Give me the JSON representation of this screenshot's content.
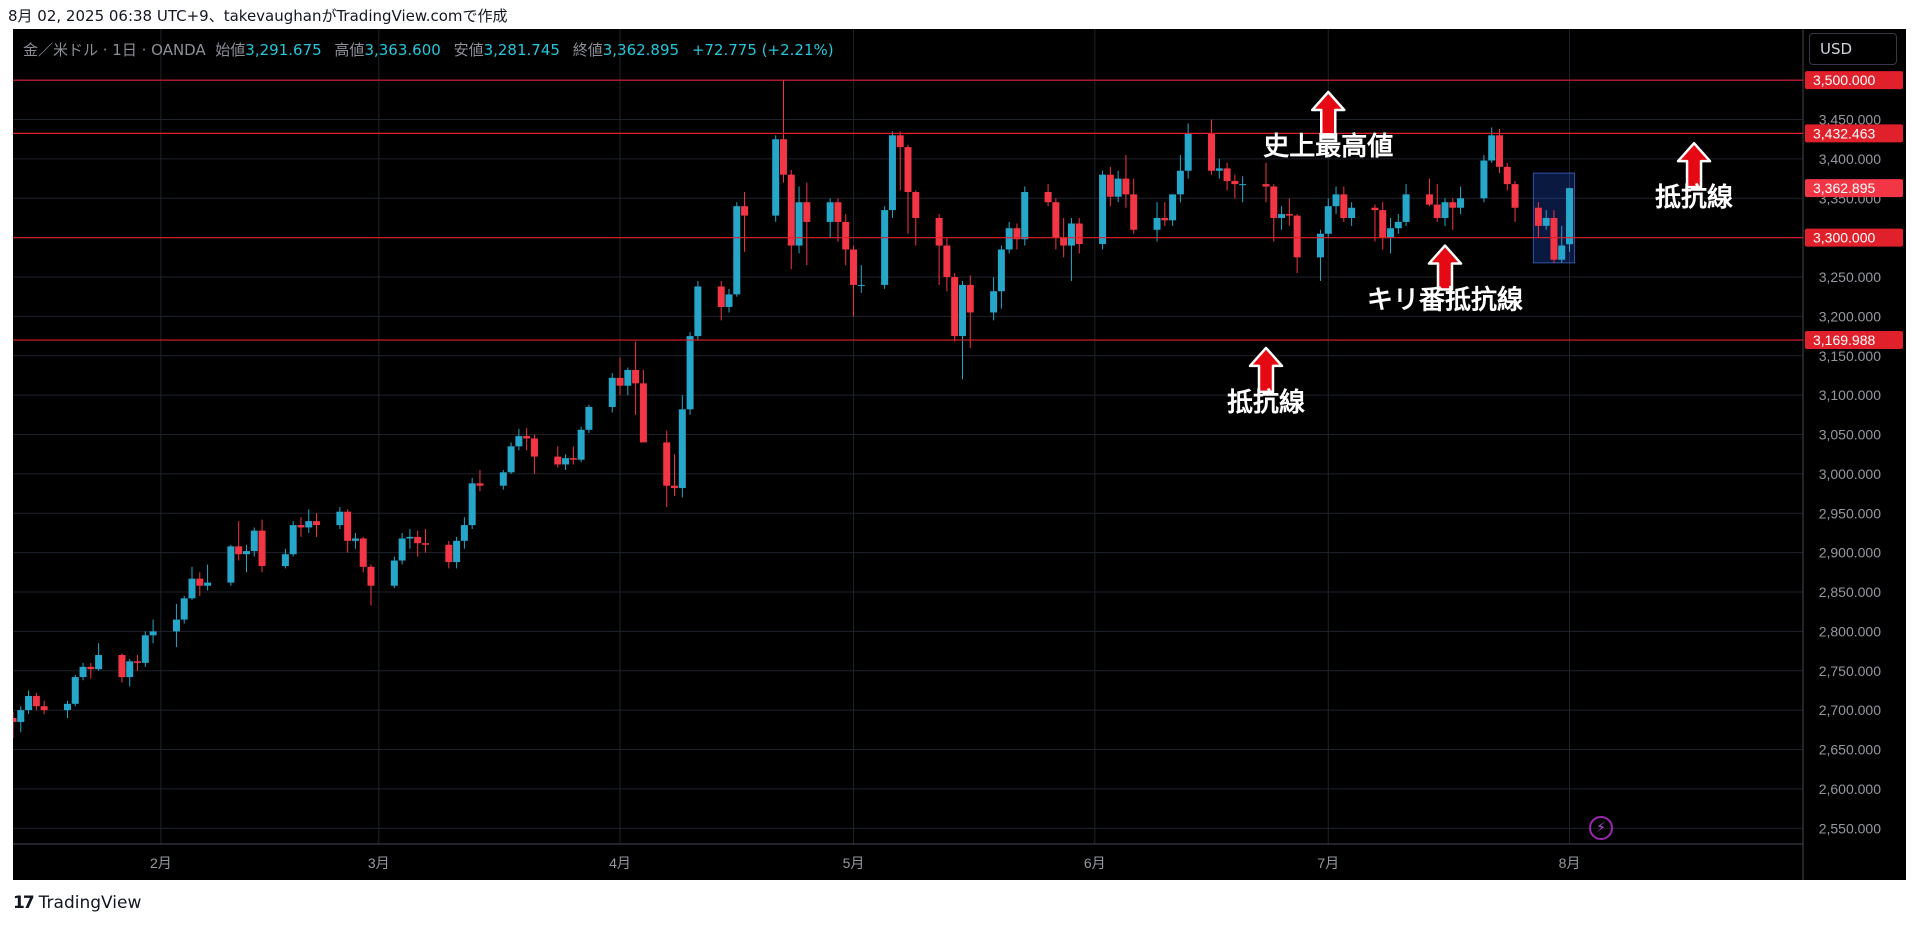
{
  "header": {
    "caption": "8月 02, 2025 06:38 UTC+9、takevaughanがTradingView.comで作成"
  },
  "legend": {
    "symbol": "金／米ドル · 1日 · OANDA",
    "open_label": "始値",
    "open": "3,291.675",
    "high_label": "高値",
    "high": "3,363.600",
    "low_label": "安値",
    "low": "3,281.745",
    "close_label": "終値",
    "close": "3,362.895",
    "change": "+72.775 (+2.21%)"
  },
  "currency": "USD",
  "footer": {
    "brand": "TradingView"
  },
  "colors": {
    "up": "#26a6c8",
    "down": "#f23645",
    "level_line": "#e0202a",
    "background": "#000000",
    "grid": "#1e222d",
    "axis_text": "#9598a1"
  },
  "chart_data": {
    "type": "candlestick",
    "title": "",
    "xlabel": "",
    "ylabel": "",
    "ylim": [
      2530,
      3565
    ],
    "xlim": [
      "2025-01-13",
      "2025-08-31"
    ],
    "y_ticks": [
      2550,
      2600,
      2650,
      2700,
      2750,
      2800,
      2850,
      2900,
      2950,
      3000,
      3050,
      3100,
      3150,
      3200,
      3250,
      3300,
      3350,
      3400,
      3450,
      3500
    ],
    "x_ticks": [
      {
        "label": "2月",
        "date": "2025-02-01"
      },
      {
        "label": "3月",
        "date": "2025-03-01"
      },
      {
        "label": "4月",
        "date": "2025-04-01"
      },
      {
        "label": "5月",
        "date": "2025-05-01"
      },
      {
        "label": "6月",
        "date": "2025-06-01"
      },
      {
        "label": "7月",
        "date": "2025-07-01"
      },
      {
        "label": "8月",
        "date": "2025-08-01"
      }
    ],
    "grid": true,
    "horizontal_levels": [
      {
        "value": 3500.0,
        "label": "3,500.000"
      },
      {
        "value": 3432.463,
        "label": "3,432.463"
      },
      {
        "value": 3300.0,
        "label": "3,300.000"
      },
      {
        "value": 3169.988,
        "label": "3,169.988"
      }
    ],
    "last_price": {
      "value": 3362.895,
      "label": "3,362.895"
    },
    "highlight_box": {
      "from": "2025-07-28",
      "to": "2025-08-01",
      "y_low": 3268,
      "y_high": 3382
    },
    "annotations": [
      {
        "text": "史上最高値",
        "date": "2025-07-01",
        "arrow_at": 3485,
        "text_at": 3405
      },
      {
        "text": "抵抗線",
        "date": "2025-08-17",
        "arrow_at": 3420,
        "text_at": 3340
      },
      {
        "text": "キリ番抵抗線",
        "date": "2025-07-16",
        "arrow_at": 3290,
        "text_at": 3210
      },
      {
        "text": "抵抗線",
        "date": "2025-06-23",
        "arrow_at": 3160,
        "text_at": 3080
      }
    ],
    "candles": [
      {
        "d": "2025-01-13",
        "o": 2690,
        "h": 2698,
        "l": 2665,
        "c": 2685
      },
      {
        "d": "2025-01-14",
        "o": 2685,
        "h": 2705,
        "l": 2672,
        "c": 2700
      },
      {
        "d": "2025-01-15",
        "o": 2700,
        "h": 2725,
        "l": 2695,
        "c": 2718
      },
      {
        "d": "2025-01-16",
        "o": 2718,
        "h": 2722,
        "l": 2700,
        "c": 2705
      },
      {
        "d": "2025-01-17",
        "o": 2705,
        "h": 2712,
        "l": 2695,
        "c": 2700
      },
      {
        "d": "2025-01-20",
        "o": 2700,
        "h": 2712,
        "l": 2690,
        "c": 2708
      },
      {
        "d": "2025-01-21",
        "o": 2708,
        "h": 2745,
        "l": 2705,
        "c": 2742
      },
      {
        "d": "2025-01-22",
        "o": 2742,
        "h": 2760,
        "l": 2738,
        "c": 2755
      },
      {
        "d": "2025-01-23",
        "o": 2755,
        "h": 2760,
        "l": 2740,
        "c": 2752
      },
      {
        "d": "2025-01-24",
        "o": 2752,
        "h": 2785,
        "l": 2750,
        "c": 2770
      },
      {
        "d": "2025-01-27",
        "o": 2770,
        "h": 2772,
        "l": 2735,
        "c": 2742
      },
      {
        "d": "2025-01-28",
        "o": 2742,
        "h": 2765,
        "l": 2730,
        "c": 2762
      },
      {
        "d": "2025-01-29",
        "o": 2762,
        "h": 2770,
        "l": 2750,
        "c": 2760
      },
      {
        "d": "2025-01-30",
        "o": 2760,
        "h": 2800,
        "l": 2755,
        "c": 2795
      },
      {
        "d": "2025-01-31",
        "o": 2795,
        "h": 2815,
        "l": 2785,
        "c": 2800
      },
      {
        "d": "2025-02-03",
        "o": 2800,
        "h": 2835,
        "l": 2780,
        "c": 2815
      },
      {
        "d": "2025-02-04",
        "o": 2815,
        "h": 2845,
        "l": 2810,
        "c": 2842
      },
      {
        "d": "2025-02-05",
        "o": 2842,
        "h": 2882,
        "l": 2840,
        "c": 2867
      },
      {
        "d": "2025-02-06",
        "o": 2867,
        "h": 2875,
        "l": 2845,
        "c": 2858
      },
      {
        "d": "2025-02-07",
        "o": 2858,
        "h": 2885,
        "l": 2852,
        "c": 2862
      },
      {
        "d": "2025-02-10",
        "o": 2862,
        "h": 2910,
        "l": 2858,
        "c": 2908
      },
      {
        "d": "2025-02-11",
        "o": 2908,
        "h": 2940,
        "l": 2890,
        "c": 2898
      },
      {
        "d": "2025-02-12",
        "o": 2898,
        "h": 2910,
        "l": 2875,
        "c": 2902
      },
      {
        "d": "2025-02-13",
        "o": 2902,
        "h": 2932,
        "l": 2895,
        "c": 2928
      },
      {
        "d": "2025-02-14",
        "o": 2928,
        "h": 2942,
        "l": 2875,
        "c": 2883
      },
      {
        "d": "2025-02-17",
        "o": 2883,
        "h": 2905,
        "l": 2880,
        "c": 2898
      },
      {
        "d": "2025-02-18",
        "o": 2898,
        "h": 2940,
        "l": 2895,
        "c": 2935
      },
      {
        "d": "2025-02-19",
        "o": 2935,
        "h": 2945,
        "l": 2920,
        "c": 2932
      },
      {
        "d": "2025-02-20",
        "o": 2932,
        "h": 2955,
        "l": 2925,
        "c": 2940
      },
      {
        "d": "2025-02-21",
        "o": 2940,
        "h": 2950,
        "l": 2920,
        "c": 2935
      },
      {
        "d": "2025-02-24",
        "o": 2935,
        "h": 2958,
        "l": 2930,
        "c": 2952
      },
      {
        "d": "2025-02-25",
        "o": 2952,
        "h": 2955,
        "l": 2900,
        "c": 2915
      },
      {
        "d": "2025-02-26",
        "o": 2915,
        "h": 2925,
        "l": 2905,
        "c": 2918
      },
      {
        "d": "2025-02-27",
        "o": 2918,
        "h": 2920,
        "l": 2875,
        "c": 2882
      },
      {
        "d": "2025-02-28",
        "o": 2882,
        "h": 2885,
        "l": 2833,
        "c": 2858
      },
      {
        "d": "2025-03-03",
        "o": 2858,
        "h": 2895,
        "l": 2855,
        "c": 2890
      },
      {
        "d": "2025-03-04",
        "o": 2890,
        "h": 2925,
        "l": 2885,
        "c": 2918
      },
      {
        "d": "2025-03-05",
        "o": 2918,
        "h": 2930,
        "l": 2905,
        "c": 2920
      },
      {
        "d": "2025-03-06",
        "o": 2920,
        "h": 2928,
        "l": 2895,
        "c": 2912
      },
      {
        "d": "2025-03-07",
        "o": 2912,
        "h": 2930,
        "l": 2900,
        "c": 2910
      },
      {
        "d": "2025-03-10",
        "o": 2910,
        "h": 2915,
        "l": 2880,
        "c": 2888
      },
      {
        "d": "2025-03-11",
        "o": 2888,
        "h": 2920,
        "l": 2880,
        "c": 2915
      },
      {
        "d": "2025-03-12",
        "o": 2915,
        "h": 2945,
        "l": 2905,
        "c": 2935
      },
      {
        "d": "2025-03-13",
        "o": 2935,
        "h": 2995,
        "l": 2930,
        "c": 2988
      },
      {
        "d": "2025-03-14",
        "o": 2988,
        "h": 3005,
        "l": 2978,
        "c": 2985
      },
      {
        "d": "2025-03-17",
        "o": 2985,
        "h": 3005,
        "l": 2980,
        "c": 3002
      },
      {
        "d": "2025-03-18",
        "o": 3002,
        "h": 3040,
        "l": 3000,
        "c": 3035
      },
      {
        "d": "2025-03-19",
        "o": 3035,
        "h": 3057,
        "l": 3030,
        "c": 3048
      },
      {
        "d": "2025-03-20",
        "o": 3048,
        "h": 3058,
        "l": 3030,
        "c": 3045
      },
      {
        "d": "2025-03-21",
        "o": 3045,
        "h": 3050,
        "l": 3000,
        "c": 3022
      },
      {
        "d": "2025-03-24",
        "o": 3022,
        "h": 3035,
        "l": 3008,
        "c": 3012
      },
      {
        "d": "2025-03-25",
        "o": 3012,
        "h": 3025,
        "l": 3005,
        "c": 3020
      },
      {
        "d": "2025-03-26",
        "o": 3020,
        "h": 3035,
        "l": 3012,
        "c": 3018
      },
      {
        "d": "2025-03-27",
        "o": 3018,
        "h": 3060,
        "l": 3015,
        "c": 3056
      },
      {
        "d": "2025-03-28",
        "o": 3056,
        "h": 3088,
        "l": 3052,
        "c": 3085
      },
      {
        "d": "2025-03-31",
        "o": 3085,
        "h": 3128,
        "l": 3078,
        "c": 3122
      },
      {
        "d": "2025-04-01",
        "o": 3122,
        "h": 3148,
        "l": 3100,
        "c": 3112
      },
      {
        "d": "2025-04-02",
        "o": 3112,
        "h": 3135,
        "l": 3100,
        "c": 3132
      },
      {
        "d": "2025-04-03",
        "o": 3132,
        "h": 3168,
        "l": 3075,
        "c": 3115
      },
      {
        "d": "2025-04-04",
        "o": 3115,
        "h": 3132,
        "l": 3050,
        "c": 3040
      },
      {
        "d": "2025-04-07",
        "o": 3040,
        "h": 3055,
        "l": 2958,
        "c": 2985
      },
      {
        "d": "2025-04-08",
        "o": 2985,
        "h": 3025,
        "l": 2972,
        "c": 2982
      },
      {
        "d": "2025-04-09",
        "o": 2982,
        "h": 3100,
        "l": 2970,
        "c": 3082
      },
      {
        "d": "2025-04-10",
        "o": 3082,
        "h": 3180,
        "l": 3075,
        "c": 3175
      },
      {
        "d": "2025-04-11",
        "o": 3175,
        "h": 3245,
        "l": 3170,
        "c": 3238
      },
      {
        "d": "2025-04-14",
        "o": 3238,
        "h": 3245,
        "l": 3195,
        "c": 3212
      },
      {
        "d": "2025-04-15",
        "o": 3212,
        "h": 3235,
        "l": 3205,
        "c": 3228
      },
      {
        "d": "2025-04-16",
        "o": 3228,
        "h": 3345,
        "l": 3225,
        "c": 3340
      },
      {
        "d": "2025-04-17",
        "o": 3340,
        "h": 3358,
        "l": 3282,
        "c": 3328
      },
      {
        "d": "2025-04-21",
        "o": 3328,
        "h": 3430,
        "l": 3320,
        "c": 3425
      },
      {
        "d": "2025-04-22",
        "o": 3425,
        "h": 3500,
        "l": 3370,
        "c": 3380
      },
      {
        "d": "2025-04-23",
        "o": 3380,
        "h": 3386,
        "l": 3260,
        "c": 3290
      },
      {
        "d": "2025-04-24",
        "o": 3290,
        "h": 3365,
        "l": 3280,
        "c": 3345
      },
      {
        "d": "2025-04-25",
        "o": 3345,
        "h": 3370,
        "l": 3265,
        "c": 3320
      },
      {
        "d": "2025-04-28",
        "o": 3320,
        "h": 3350,
        "l": 3300,
        "c": 3345
      },
      {
        "d": "2025-04-29",
        "o": 3345,
        "h": 3350,
        "l": 3295,
        "c": 3320
      },
      {
        "d": "2025-04-30",
        "o": 3320,
        "h": 3330,
        "l": 3265,
        "c": 3285
      },
      {
        "d": "2025-05-01",
        "o": 3285,
        "h": 3290,
        "l": 3200,
        "c": 3240
      },
      {
        "d": "2025-05-02",
        "o": 3240,
        "h": 3265,
        "l": 3230,
        "c": 3240
      },
      {
        "d": "2025-05-05",
        "o": 3240,
        "h": 3340,
        "l": 3235,
        "c": 3335
      },
      {
        "d": "2025-05-06",
        "o": 3335,
        "h": 3435,
        "l": 3325,
        "c": 3430
      },
      {
        "d": "2025-05-07",
        "o": 3430,
        "h": 3435,
        "l": 3360,
        "c": 3415
      },
      {
        "d": "2025-05-08",
        "o": 3415,
        "h": 3418,
        "l": 3305,
        "c": 3358
      },
      {
        "d": "2025-05-09",
        "o": 3358,
        "h": 3360,
        "l": 3290,
        "c": 3325
      },
      {
        "d": "2025-05-12",
        "o": 3325,
        "h": 3330,
        "l": 3240,
        "c": 3290
      },
      {
        "d": "2025-05-13",
        "o": 3290,
        "h": 3300,
        "l": 3232,
        "c": 3250
      },
      {
        "d": "2025-05-14",
        "o": 3250,
        "h": 3255,
        "l": 3168,
        "c": 3175
      },
      {
        "d": "2025-05-15",
        "o": 3175,
        "h": 3245,
        "l": 3120,
        "c": 3240
      },
      {
        "d": "2025-05-16",
        "o": 3240,
        "h": 3252,
        "l": 3160,
        "c": 3205
      },
      {
        "d": "2025-05-19",
        "o": 3205,
        "h": 3250,
        "l": 3195,
        "c": 3232
      },
      {
        "d": "2025-05-20",
        "o": 3232,
        "h": 3290,
        "l": 3210,
        "c": 3285
      },
      {
        "d": "2025-05-21",
        "o": 3285,
        "h": 3320,
        "l": 3280,
        "c": 3312
      },
      {
        "d": "2025-05-22",
        "o": 3312,
        "h": 3318,
        "l": 3285,
        "c": 3298
      },
      {
        "d": "2025-05-23",
        "o": 3298,
        "h": 3365,
        "l": 3290,
        "c": 3358
      },
      {
        "d": "2025-05-26",
        "o": 3358,
        "h": 3368,
        "l": 3340,
        "c": 3345
      },
      {
        "d": "2025-05-27",
        "o": 3345,
        "h": 3350,
        "l": 3285,
        "c": 3300
      },
      {
        "d": "2025-05-28",
        "o": 3300,
        "h": 3325,
        "l": 3275,
        "c": 3290
      },
      {
        "d": "2025-05-29",
        "o": 3290,
        "h": 3325,
        "l": 3245,
        "c": 3318
      },
      {
        "d": "2025-05-30",
        "o": 3318,
        "h": 3325,
        "l": 3280,
        "c": 3292
      },
      {
        "d": "2025-06-02",
        "o": 3292,
        "h": 3385,
        "l": 3285,
        "c": 3380
      },
      {
        "d": "2025-06-03",
        "o": 3380,
        "h": 3390,
        "l": 3340,
        "c": 3352
      },
      {
        "d": "2025-06-04",
        "o": 3352,
        "h": 3385,
        "l": 3345,
        "c": 3375
      },
      {
        "d": "2025-06-05",
        "o": 3375,
        "h": 3405,
        "l": 3338,
        "c": 3355
      },
      {
        "d": "2025-06-06",
        "o": 3355,
        "h": 3375,
        "l": 3305,
        "c": 3310
      },
      {
        "d": "2025-06-09",
        "o": 3310,
        "h": 3345,
        "l": 3295,
        "c": 3325
      },
      {
        "d": "2025-06-10",
        "o": 3325,
        "h": 3345,
        "l": 3315,
        "c": 3322
      },
      {
        "d": "2025-06-11",
        "o": 3322,
        "h": 3355,
        "l": 3315,
        "c": 3355
      },
      {
        "d": "2025-06-12",
        "o": 3355,
        "h": 3405,
        "l": 3345,
        "c": 3385
      },
      {
        "d": "2025-06-13",
        "o": 3385,
        "h": 3445,
        "l": 3375,
        "c": 3432
      },
      {
        "d": "2025-06-16",
        "o": 3432,
        "h": 3450,
        "l": 3380,
        "c": 3385
      },
      {
        "d": "2025-06-17",
        "o": 3385,
        "h": 3400,
        "l": 3375,
        "c": 3388
      },
      {
        "d": "2025-06-18",
        "o": 3388,
        "h": 3395,
        "l": 3360,
        "c": 3372
      },
      {
        "d": "2025-06-19",
        "o": 3372,
        "h": 3380,
        "l": 3350,
        "c": 3368
      },
      {
        "d": "2025-06-20",
        "o": 3368,
        "h": 3378,
        "l": 3345,
        "c": 3368
      },
      {
        "d": "2025-06-23",
        "o": 3368,
        "h": 3395,
        "l": 3345,
        "c": 3365
      },
      {
        "d": "2025-06-24",
        "o": 3365,
        "h": 3368,
        "l": 3295,
        "c": 3325
      },
      {
        "d": "2025-06-25",
        "o": 3325,
        "h": 3340,
        "l": 3310,
        "c": 3330
      },
      {
        "d": "2025-06-26",
        "o": 3330,
        "h": 3350,
        "l": 3315,
        "c": 3328
      },
      {
        "d": "2025-06-27",
        "o": 3328,
        "h": 3330,
        "l": 3255,
        "c": 3275
      },
      {
        "d": "2025-06-30",
        "o": 3275,
        "h": 3310,
        "l": 3245,
        "c": 3305
      },
      {
        "d": "2025-07-01",
        "o": 3305,
        "h": 3350,
        "l": 3300,
        "c": 3340
      },
      {
        "d": "2025-07-02",
        "o": 3340,
        "h": 3365,
        "l": 3330,
        "c": 3355
      },
      {
        "d": "2025-07-03",
        "o": 3355,
        "h": 3365,
        "l": 3320,
        "c": 3325
      },
      {
        "d": "2025-07-04",
        "o": 3325,
        "h": 3345,
        "l": 3315,
        "c": 3338
      },
      {
        "d": "2025-07-07",
        "o": 3338,
        "h": 3342,
        "l": 3295,
        "c": 3335
      },
      {
        "d": "2025-07-08",
        "o": 3335,
        "h": 3345,
        "l": 3285,
        "c": 3300
      },
      {
        "d": "2025-07-09",
        "o": 3300,
        "h": 3325,
        "l": 3280,
        "c": 3312
      },
      {
        "d": "2025-07-10",
        "o": 3312,
        "h": 3330,
        "l": 3305,
        "c": 3320
      },
      {
        "d": "2025-07-11",
        "o": 3320,
        "h": 3368,
        "l": 3315,
        "c": 3355
      },
      {
        "d": "2025-07-14",
        "o": 3355,
        "h": 3375,
        "l": 3340,
        "c": 3342
      },
      {
        "d": "2025-07-15",
        "o": 3342,
        "h": 3368,
        "l": 3320,
        "c": 3325
      },
      {
        "d": "2025-07-16",
        "o": 3325,
        "h": 3350,
        "l": 3315,
        "c": 3345
      },
      {
        "d": "2025-07-17",
        "o": 3345,
        "h": 3350,
        "l": 3310,
        "c": 3338
      },
      {
        "d": "2025-07-18",
        "o": 3338,
        "h": 3365,
        "l": 3330,
        "c": 3350
      },
      {
        "d": "2025-07-21",
        "o": 3350,
        "h": 3405,
        "l": 3345,
        "c": 3398
      },
      {
        "d": "2025-07-22",
        "o": 3398,
        "h": 3440,
        "l": 3395,
        "c": 3430
      },
      {
        "d": "2025-07-23",
        "o": 3430,
        "h": 3438,
        "l": 3382,
        "c": 3390
      },
      {
        "d": "2025-07-24",
        "o": 3390,
        "h": 3395,
        "l": 3360,
        "c": 3368
      },
      {
        "d": "2025-07-25",
        "o": 3368,
        "h": 3372,
        "l": 3320,
        "c": 3338
      },
      {
        "d": "2025-07-28",
        "o": 3338,
        "h": 3345,
        "l": 3300,
        "c": 3315
      },
      {
        "d": "2025-07-29",
        "o": 3315,
        "h": 3335,
        "l": 3310,
        "c": 3325
      },
      {
        "d": "2025-07-30",
        "o": 3325,
        "h": 3335,
        "l": 3268,
        "c": 3272
      },
      {
        "d": "2025-07-31",
        "o": 3272,
        "h": 3315,
        "l": 3268,
        "c": 3290
      },
      {
        "d": "2025-08-01",
        "o": 3291.675,
        "h": 3363.6,
        "l": 3281.745,
        "c": 3362.895
      }
    ]
  }
}
